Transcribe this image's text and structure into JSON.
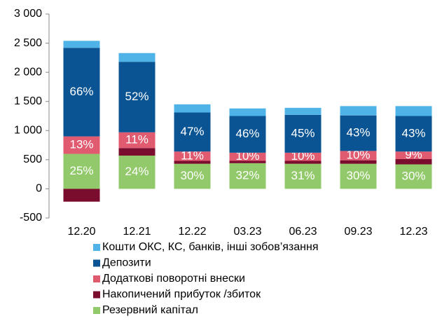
{
  "chart_data": {
    "type": "stacked_bar",
    "categories": [
      "12.20",
      "12.21",
      "12.22",
      "03.23",
      "06.23",
      "09.23",
      "12.23"
    ],
    "series": [
      {
        "name": "Резервний капітал",
        "color": "#92c96a",
        "values": [
          600,
          570,
          430,
          440,
          430,
          430,
          420
        ],
        "percent_labels": [
          "25%",
          "24%",
          "30%",
          "32%",
          "31%",
          "30%",
          "30%"
        ]
      },
      {
        "name": "Накопичений прибуток /збиток",
        "color": "#7a0c2e",
        "values": [
          -220,
          130,
          50,
          40,
          50,
          60,
          90
        ]
      },
      {
        "name": "Додаткові поворотні внески",
        "color": "#e05a70",
        "values": [
          300,
          270,
          160,
          140,
          140,
          160,
          130
        ],
        "percent_labels": [
          "13%",
          "11%",
          "11%",
          "10%",
          "10%",
          "10%",
          "9%"
        ]
      },
      {
        "name": "Депозити",
        "color": "#0a5494",
        "values": [
          1520,
          1210,
          670,
          630,
          650,
          610,
          610
        ],
        "percent_labels": [
          "66%",
          "52%",
          "47%",
          "46%",
          "45%",
          "43%",
          "43%"
        ]
      },
      {
        "name": "Кошти ОКС, КС, банків, інші зобов’язання",
        "color": "#4fb3e8",
        "values": [
          120,
          150,
          140,
          130,
          120,
          160,
          170
        ]
      }
    ],
    "ylim": [
      -500,
      3000
    ],
    "yticks": [
      -500,
      0,
      500,
      {
        "value": 1000,
        "label": "1 000"
      },
      {
        "value": 1500,
        "label": "1 500"
      },
      {
        "value": 2000,
        "label": "2 000"
      },
      {
        "value": 2500,
        "label": "2 500"
      },
      {
        "value": 3000,
        "label": "3 000"
      }
    ],
    "legend": "bottom"
  }
}
